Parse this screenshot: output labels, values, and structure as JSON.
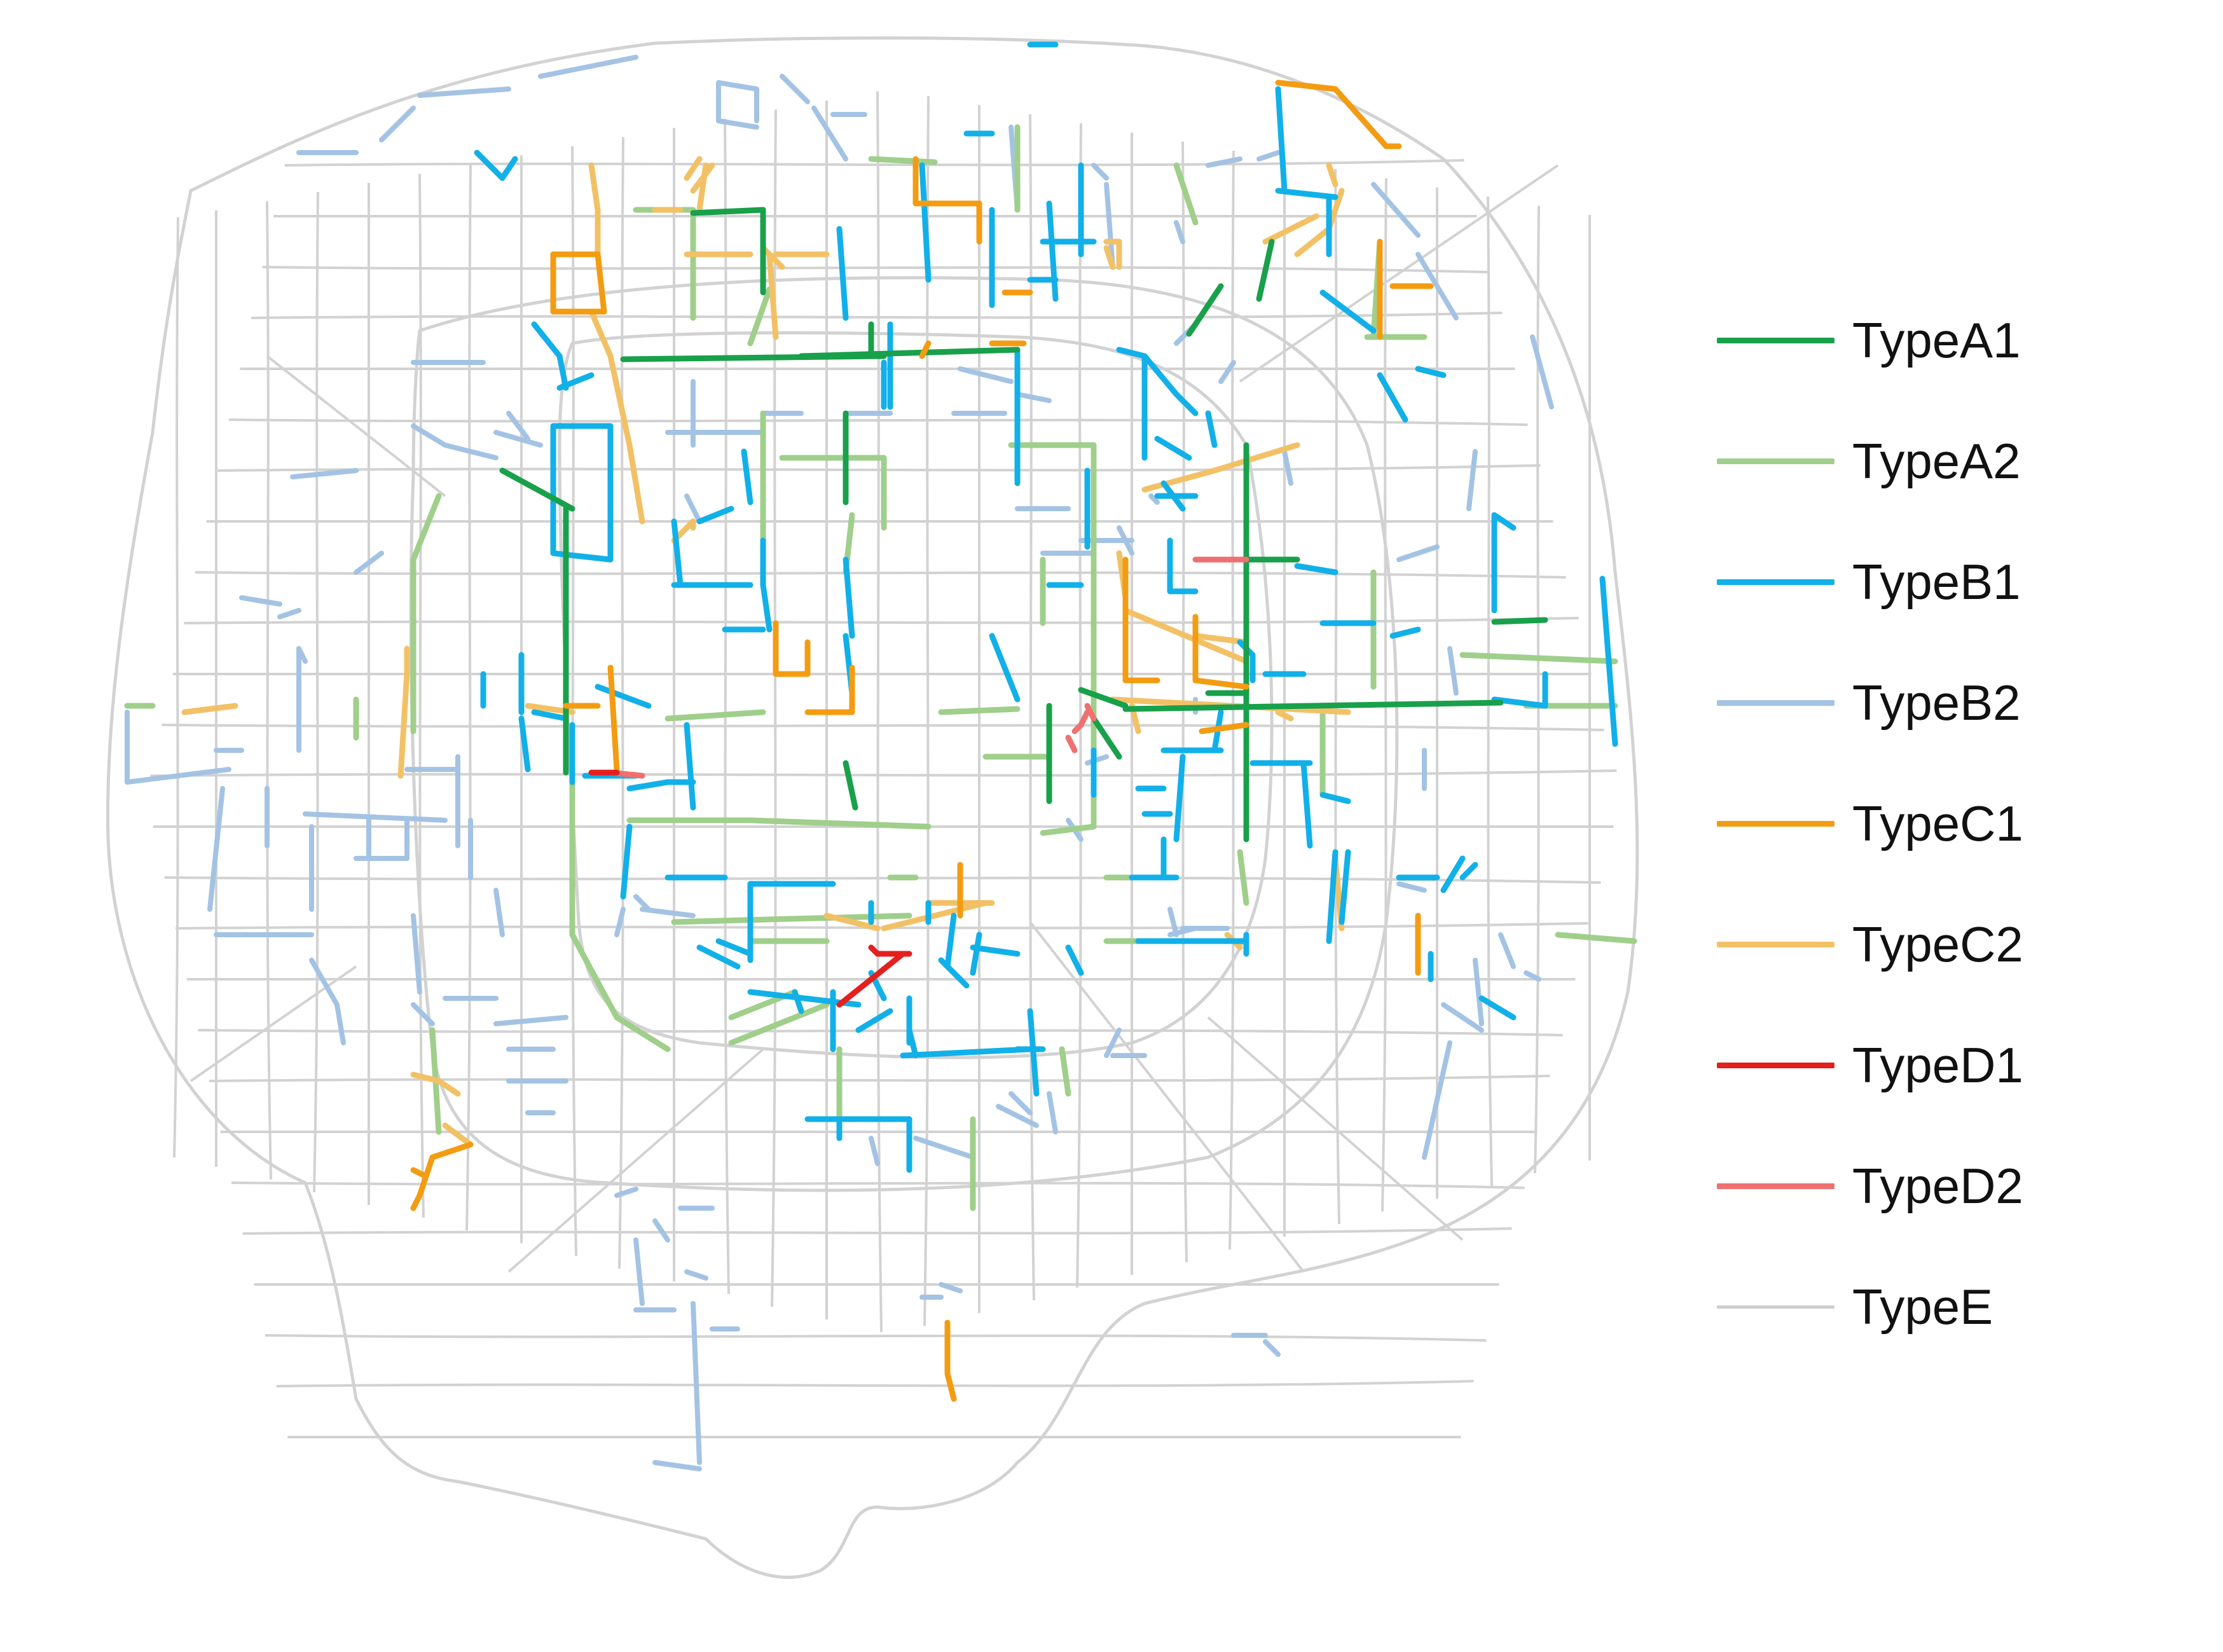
{
  "legend": {
    "items": [
      {
        "label": "TypeA1",
        "color": "#19a04b"
      },
      {
        "label": "TypeA2",
        "color": "#9fcf8b"
      },
      {
        "label": "TypeB1",
        "color": "#12b0e8"
      },
      {
        "label": "TypeB2",
        "color": "#a4c3e4"
      },
      {
        "label": "TypeC1",
        "color": "#f39c12"
      },
      {
        "label": "TypeC2",
        "color": "#f2c166"
      },
      {
        "label": "TypeD1",
        "color": "#e4201f"
      },
      {
        "label": "TypeD2",
        "color": "#ee7070"
      },
      {
        "label": "TypeE",
        "color": "#cccccc"
      }
    ]
  },
  "map": {
    "background_network_color": "#d2d2d2",
    "roads": [
      {
        "type": "TypeA1",
        "label_index": 0
      },
      {
        "type": "TypeA2",
        "label_index": 1
      },
      {
        "type": "TypeB1",
        "label_index": 2
      },
      {
        "type": "TypeB2",
        "label_index": 3
      },
      {
        "type": "TypeC1",
        "label_index": 4
      },
      {
        "type": "TypeC2",
        "label_index": 5
      },
      {
        "type": "TypeD1",
        "label_index": 6
      },
      {
        "type": "TypeD2",
        "label_index": 7
      }
    ]
  }
}
